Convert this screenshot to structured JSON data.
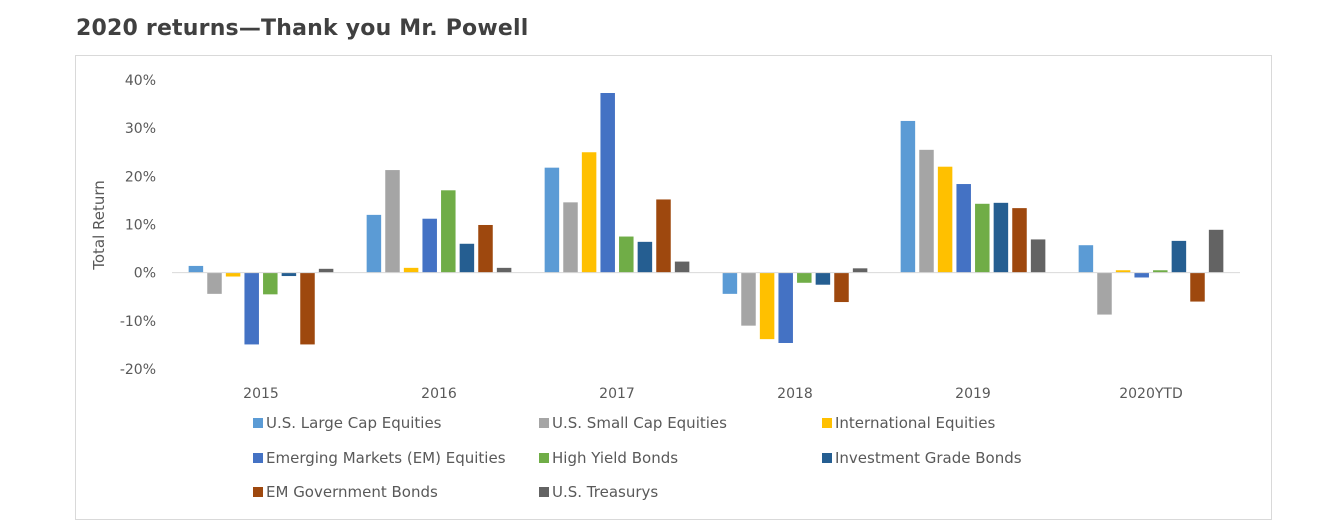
{
  "page": {
    "title": "2020 returns—Thank you Mr. Powell"
  },
  "chart_data": {
    "type": "bar",
    "title": "",
    "xlabel": "",
    "ylabel": "Total Return",
    "ylim": [
      -20,
      40
    ],
    "yticks": [
      40,
      30,
      20,
      10,
      0,
      -10,
      -20
    ],
    "ytick_labels": [
      "40%",
      "30%",
      "20%",
      "10%",
      "0%",
      "-10%",
      "-20%"
    ],
    "grid": false,
    "legend_position": "bottom",
    "categories": [
      "2015",
      "2016",
      "2017",
      "2018",
      "2019",
      "2020YTD"
    ],
    "series": [
      {
        "name": "U.S. Large Cap Equities",
        "color": "#5b9bd5",
        "values": [
          1.4,
          12.0,
          21.8,
          -4.4,
          31.5,
          5.7
        ]
      },
      {
        "name": "U.S. Small Cap Equities",
        "color": "#a5a5a5",
        "values": [
          -4.4,
          21.3,
          14.6,
          -11.0,
          25.5,
          -8.7
        ]
      },
      {
        "name": "International Equities",
        "color": "#ffc000",
        "values": [
          -0.8,
          1.0,
          25.0,
          -13.8,
          22.0,
          0.5
        ]
      },
      {
        "name": "Emerging Markets (EM) Equities",
        "color": "#4472c4",
        "values": [
          -14.9,
          11.2,
          37.3,
          -14.6,
          18.4,
          -1.0
        ]
      },
      {
        "name": "High Yield Bonds",
        "color": "#70ad47",
        "values": [
          -4.5,
          17.1,
          7.5,
          -2.1,
          14.3,
          0.5
        ]
      },
      {
        "name": "Investment Grade Bonds",
        "color": "#255e91",
        "values": [
          -0.7,
          6.0,
          6.4,
          -2.5,
          14.5,
          6.6
        ]
      },
      {
        "name": "EM Government Bonds",
        "color": "#9e480e",
        "values": [
          -14.9,
          9.9,
          15.2,
          -6.1,
          13.4,
          -6.0
        ]
      },
      {
        "name": "U.S. Treasurys",
        "color": "#636363",
        "values": [
          0.8,
          1.0,
          2.3,
          0.9,
          6.9,
          8.9
        ]
      }
    ]
  }
}
